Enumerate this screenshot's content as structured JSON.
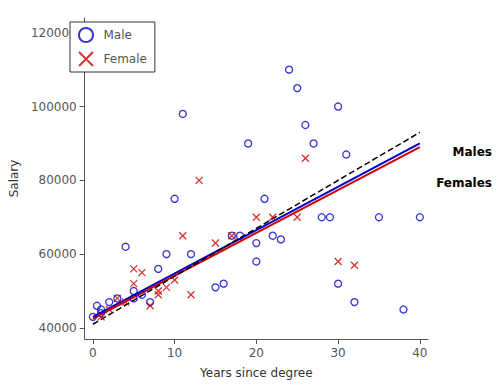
{
  "chart_data": {
    "type": "scatter",
    "xlabel": "Years since degree",
    "ylabel": "Salary",
    "xlim": [
      -1,
      41
    ],
    "ylim": [
      37000,
      124000
    ],
    "xticks": [
      0,
      10,
      20,
      30,
      40
    ],
    "yticks": [
      40000,
      60000,
      80000,
      100000,
      120000
    ],
    "grid": false,
    "legend": "upper left",
    "annotations": [
      "Males",
      "Females"
    ],
    "series": [
      {
        "name": "Male",
        "type": "scatter",
        "marker": "open_circle",
        "color": "#0000cc",
        "x": [
          0,
          0.5,
          1,
          1,
          2,
          3,
          4,
          5,
          5,
          6,
          7,
          8,
          9,
          10,
          11,
          12,
          15,
          16,
          17,
          18,
          19,
          20,
          20,
          21,
          22,
          23,
          24,
          25,
          26,
          27,
          28,
          29,
          30,
          30,
          31,
          32,
          35,
          38,
          40
        ],
        "values": [
          43000,
          46000,
          44000,
          45000,
          47000,
          48000,
          62000,
          48000,
          50000,
          49000,
          47000,
          56000,
          60000,
          75000,
          98000,
          60000,
          51000,
          52000,
          65000,
          65000,
          90000,
          63000,
          58000,
          75000,
          65000,
          64000,
          110000,
          105000,
          95000,
          90000,
          70000,
          70000,
          100000,
          52000,
          87000,
          47000,
          70000,
          45000,
          70000
        ]
      },
      {
        "name": "Female",
        "type": "scatter",
        "marker": "cross",
        "color": "#cc0000",
        "x": [
          1,
          2,
          3,
          4,
          5,
          5,
          6,
          7,
          8,
          8,
          9,
          10,
          11,
          12,
          13,
          15,
          17,
          20,
          22,
          25,
          26,
          30,
          32
        ],
        "values": [
          43000,
          45000,
          48000,
          47000,
          52000,
          56000,
          55000,
          46000,
          49000,
          50000,
          51000,
          53000,
          65000,
          49000,
          80000,
          63000,
          65000,
          70000,
          70000,
          70000,
          86000,
          58000,
          57000
        ]
      },
      {
        "type": "line",
        "line_style": "solid",
        "color": "#0000cc",
        "x": [
          0,
          40
        ],
        "values": [
          43000,
          90000
        ]
      },
      {
        "type": "line",
        "line_style": "solid",
        "color": "#cc0000",
        "x": [
          0,
          40
        ],
        "values": [
          42500,
          89000
        ]
      },
      {
        "type": "line",
        "line_style": "dashed",
        "color": "#000000",
        "x": [
          0,
          40
        ],
        "values": [
          41000,
          93000
        ]
      }
    ]
  }
}
